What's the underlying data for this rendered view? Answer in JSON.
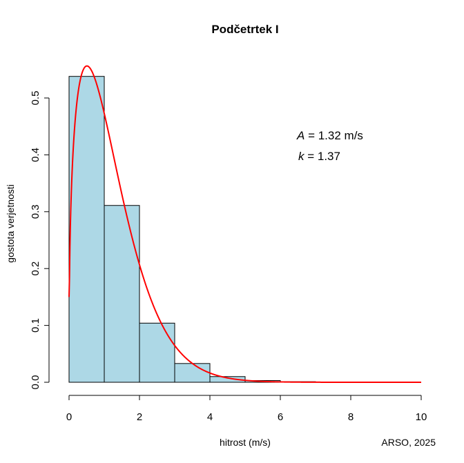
{
  "chart_data": {
    "type": "bar",
    "title": "Podčetrtek I",
    "xlabel": "hitrost (m/s)",
    "ylabel": "gostota verjetnosti",
    "credit": "ARSO, 2025",
    "xlim": [
      0,
      10
    ],
    "ylim": [
      0,
      0.55
    ],
    "x_ticks": [
      "0",
      "2",
      "4",
      "6",
      "8",
      "10"
    ],
    "y_ticks": [
      "0.0",
      "0.1",
      "0.2",
      "0.3",
      "0.4",
      "0.5"
    ],
    "bins": [
      {
        "from": 0,
        "to": 1,
        "density": 0.538
      },
      {
        "from": 1,
        "to": 2,
        "density": 0.311
      },
      {
        "from": 2,
        "to": 3,
        "density": 0.104
      },
      {
        "from": 3,
        "to": 4,
        "density": 0.033
      },
      {
        "from": 4,
        "to": 5,
        "density": 0.01
      },
      {
        "from": 5,
        "to": 6,
        "density": 0.003
      },
      {
        "from": 6,
        "to": 7,
        "density": 0.001
      }
    ],
    "bar_color": "#add8e6",
    "curve": {
      "distribution": "weibull",
      "A": 1.32,
      "k": 1.37,
      "color": "#ff0000"
    },
    "annotation": {
      "A_symbol": "A",
      "A_text": " =  1.32 m/s",
      "k_symbol": "k",
      "k_text": " =  1.37"
    },
    "grid": false
  }
}
